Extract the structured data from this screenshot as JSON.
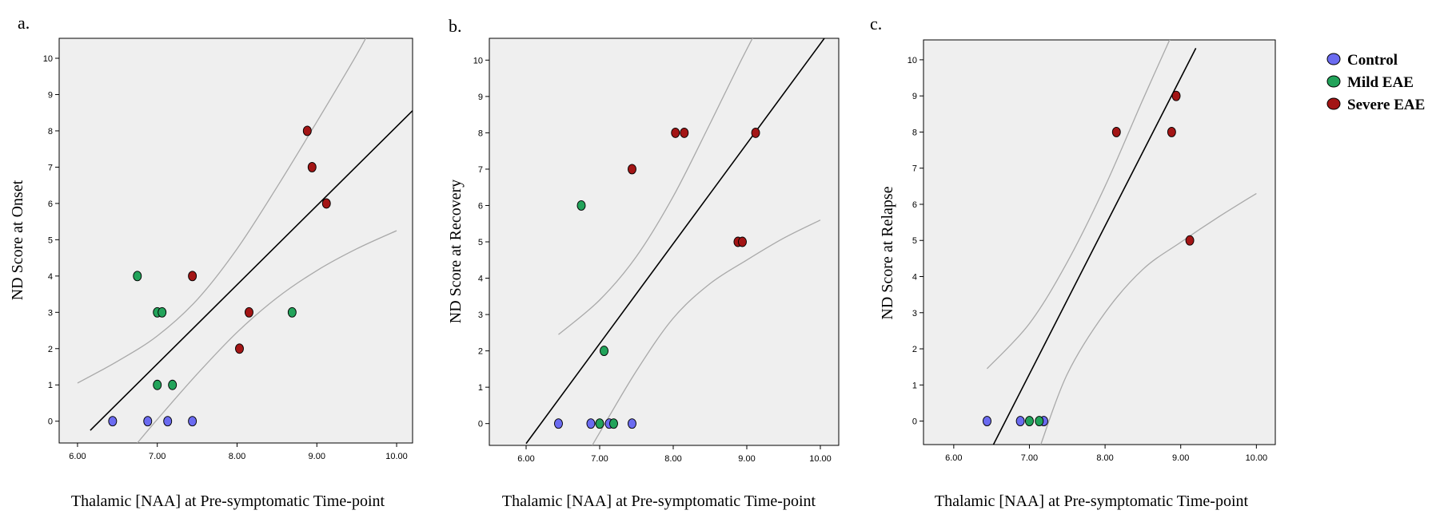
{
  "legend": {
    "items": [
      {
        "label": "Control",
        "group": "control"
      },
      {
        "label": "Mild EAE",
        "group": "mild"
      },
      {
        "label": "Severe EAE",
        "group": "severe"
      }
    ]
  },
  "colors": {
    "plot_bg": "#efefef",
    "fit_line": "#000000",
    "ci_line": "#a9a9a9",
    "axis": "#000000"
  },
  "chart_data": [
    {
      "type": "scatter",
      "panel": "a.",
      "title": "",
      "xlabel": "Thalamic [NAA] at Pre-symptomatic Time-point",
      "ylabel": "ND Score at Onset",
      "xlim": [
        5.77,
        10.2
      ],
      "ylim": [
        -0.6,
        10.55
      ],
      "xticks": [
        6.0,
        7.0,
        8.0,
        9.0,
        10.0
      ],
      "xtick_labels": [
        "6.00",
        "7.00",
        "8.00",
        "9.00",
        "10.00"
      ],
      "yticks": [
        0,
        1,
        2,
        3,
        4,
        5,
        6,
        7,
        8,
        9,
        10
      ],
      "grid": false,
      "series": [
        {
          "name": "Control",
          "group": "control",
          "color": "#6b6bf0",
          "points": [
            [
              6.44,
              0
            ],
            [
              6.88,
              0
            ],
            [
              7.13,
              0
            ],
            [
              7.44,
              0
            ]
          ]
        },
        {
          "name": "Mild EAE",
          "group": "mild",
          "color": "#22a35a",
          "points": [
            [
              6.75,
              4
            ],
            [
              7.0,
              3
            ],
            [
              7.06,
              3
            ],
            [
              7.0,
              1
            ],
            [
              7.19,
              1
            ],
            [
              8.69,
              3
            ]
          ]
        },
        {
          "name": "Severe EAE",
          "group": "severe",
          "color": "#a31515",
          "points": [
            [
              7.44,
              4
            ],
            [
              8.15,
              3
            ],
            [
              8.03,
              2
            ],
            [
              8.88,
              8
            ],
            [
              8.94,
              7
            ],
            [
              9.12,
              6
            ]
          ]
        }
      ],
      "fit": {
        "slope": 2.18,
        "intercept": -13.68,
        "x_range": [
          6.16,
          10.2
        ]
      },
      "ci_upper": [
        [
          6.0,
          1.05
        ],
        [
          6.5,
          1.65
        ],
        [
          7.0,
          2.35
        ],
        [
          7.5,
          3.35
        ],
        [
          8.0,
          4.75
        ],
        [
          8.5,
          6.45
        ],
        [
          9.0,
          8.25
        ],
        [
          9.5,
          10.1
        ],
        [
          9.72,
          11.0
        ]
      ],
      "ci_lower": [
        [
          6.75,
          -0.6
        ],
        [
          7.0,
          0.05
        ],
        [
          7.5,
          1.3
        ],
        [
          8.0,
          2.45
        ],
        [
          8.5,
          3.4
        ],
        [
          9.0,
          4.15
        ],
        [
          9.5,
          4.75
        ],
        [
          10.0,
          5.25
        ]
      ]
    },
    {
      "type": "scatter",
      "panel": "b.",
      "title": "",
      "xlabel": "Thalamic [NAA] at Pre-symptomatic Time-point",
      "ylabel": "ND Score at Recovery",
      "xlim": [
        5.5,
        10.25
      ],
      "ylim": [
        -0.6,
        10.6
      ],
      "xticks": [
        6.0,
        7.0,
        8.0,
        9.0,
        10.0
      ],
      "xtick_labels": [
        "6.00",
        "7.00",
        "8.00",
        "9.00",
        "10.00"
      ],
      "yticks": [
        0,
        1,
        2,
        3,
        4,
        5,
        6,
        7,
        8,
        9,
        10
      ],
      "grid": false,
      "series": [
        {
          "name": "Control",
          "group": "control",
          "color": "#6b6bf0",
          "points": [
            [
              6.44,
              0
            ],
            [
              6.88,
              0
            ],
            [
              7.13,
              0
            ],
            [
              7.44,
              0
            ]
          ]
        },
        {
          "name": "Mild EAE",
          "group": "mild",
          "color": "#22a35a",
          "points": [
            [
              6.75,
              6
            ],
            [
              7.0,
              0
            ],
            [
              7.06,
              2
            ],
            [
              7.19,
              0
            ]
          ]
        },
        {
          "name": "Severe EAE",
          "group": "severe",
          "color": "#a31515",
          "points": [
            [
              7.44,
              7
            ],
            [
              8.03,
              8
            ],
            [
              8.15,
              8
            ],
            [
              8.88,
              5
            ],
            [
              8.94,
              5
            ],
            [
              9.12,
              8
            ]
          ]
        }
      ],
      "fit": {
        "slope": 2.75,
        "intercept": -17.05,
        "x_range": [
          6.0,
          10.25
        ]
      },
      "ci_upper": [
        [
          6.44,
          2.45
        ],
        [
          7.0,
          3.4
        ],
        [
          7.5,
          4.6
        ],
        [
          8.0,
          6.25
        ],
        [
          8.5,
          8.25
        ],
        [
          8.9,
          9.9
        ],
        [
          9.18,
          11.0
        ]
      ],
      "ci_lower": [
        [
          6.9,
          -0.6
        ],
        [
          7.0,
          -0.25
        ],
        [
          7.5,
          1.45
        ],
        [
          8.0,
          2.9
        ],
        [
          8.5,
          3.85
        ],
        [
          9.0,
          4.5
        ],
        [
          9.5,
          5.1
        ],
        [
          10.0,
          5.6
        ]
      ]
    },
    {
      "type": "scatter",
      "panel": "c.",
      "title": "",
      "xlabel": "Thalamic [NAA] at Pre-symptomatic Time-point",
      "ylabel": "ND Score at Relapse",
      "xlim": [
        5.6,
        10.25
      ],
      "ylim": [
        -0.65,
        10.55
      ],
      "xticks": [
        6.0,
        7.0,
        8.0,
        9.0,
        10.0
      ],
      "xtick_labels": [
        "6.00",
        "7.00",
        "8.00",
        "9.00",
        "10.00"
      ],
      "yticks": [
        0,
        1,
        2,
        3,
        4,
        5,
        6,
        7,
        8,
        9,
        10
      ],
      "grid": false,
      "series": [
        {
          "name": "Control",
          "group": "control",
          "color": "#6b6bf0",
          "points": [
            [
              6.44,
              0
            ],
            [
              6.88,
              0
            ],
            [
              7.19,
              0
            ]
          ]
        },
        {
          "name": "Mild EAE",
          "group": "mild",
          "color": "#22a35a",
          "points": [
            [
              7.0,
              0
            ],
            [
              7.13,
              0
            ]
          ]
        },
        {
          "name": "Severe EAE",
          "group": "severe",
          "color": "#a31515",
          "points": [
            [
              8.15,
              8
            ],
            [
              8.88,
              8
            ],
            [
              8.94,
              9
            ],
            [
              9.12,
              5
            ]
          ]
        }
      ],
      "fit": {
        "slope": 4.1,
        "intercept": -27.4,
        "x_range": [
          6.5,
          9.2
        ]
      },
      "ci_upper": [
        [
          6.44,
          1.45
        ],
        [
          7.0,
          2.7
        ],
        [
          7.5,
          4.4
        ],
        [
          8.0,
          6.5
        ],
        [
          8.5,
          8.9
        ],
        [
          8.95,
          11.0
        ]
      ],
      "ci_lower": [
        [
          7.15,
          -0.65
        ],
        [
          7.5,
          1.3
        ],
        [
          8.0,
          3.0
        ],
        [
          8.5,
          4.2
        ],
        [
          9.0,
          4.95
        ],
        [
          9.5,
          5.65
        ],
        [
          10.0,
          6.3
        ]
      ]
    }
  ]
}
